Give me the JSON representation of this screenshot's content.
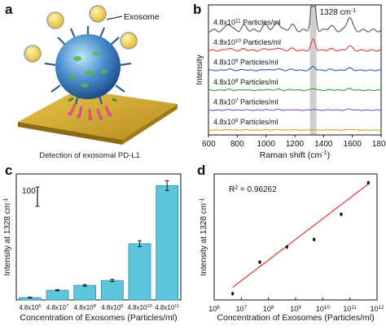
{
  "panels": {
    "a": "a",
    "b": "b",
    "c": "c",
    "d": "d"
  },
  "diagram": {
    "exosome_label": "Exosome",
    "caption": "Detection of exosomal PD-L1"
  },
  "colors": {
    "exosome_body": "#3b7fc4",
    "nanoparticle": "#f2d23c",
    "substrate": "#d6b03a",
    "bar": "#5cc6dc",
    "fit_line": "#e0392b",
    "raman_highlight": "#cfcfcf"
  },
  "chart_data": [
    {
      "panel": "b",
      "type": "line",
      "xlabel": "Raman shift (cm⁻¹)",
      "xlabel_parts": {
        "text": "Raman shift (cm",
        "sup": "-1",
        "tail": ")"
      },
      "ylabel": "Intensity",
      "xlim": [
        600,
        1800
      ],
      "xticks": [
        "600",
        "800",
        "1000",
        "1200",
        "1400",
        "1600",
        "1800"
      ],
      "peak_annotation": {
        "text": "1328 cm",
        "sup": "-1",
        "x": 1328
      },
      "series": [
        {
          "label": "4.8x10",
          "exp": "11",
          "unit": " Particles/ml",
          "color": "#555555",
          "peak": 1.0,
          "offset": 5
        },
        {
          "label": "4.8x10",
          "exp": "10",
          "unit": " Particles/ml",
          "color": "#e23b3b",
          "peak": 0.45,
          "offset": 4
        },
        {
          "label": "4.8x10",
          "exp": "9",
          "unit": " Particles/ml",
          "color": "#2b55c8",
          "peak": 0.25,
          "offset": 3
        },
        {
          "label": "4.8x10",
          "exp": "8",
          "unit": " Particles/ml",
          "color": "#2e9e3e",
          "peak": 0.17,
          "offset": 2
        },
        {
          "label": "4.8x10",
          "exp": "7",
          "unit": " Particles/ml",
          "color": "#8a4fb8",
          "peak": 0.1,
          "offset": 1
        },
        {
          "label": "4.8x10",
          "exp": "6",
          "unit": " Particles/ml",
          "color": "#d2a22a",
          "peak": 0.04,
          "offset": 0
        }
      ]
    },
    {
      "panel": "c",
      "type": "bar",
      "ylabel": "Intensity at 1328 cm",
      "ylabel_sup": "-1",
      "xlabel": "Concentration of Exosomes (Particles/ml)",
      "scale_bar_label": "100",
      "categories": [
        {
          "base": "4.8x10",
          "exp": "6"
        },
        {
          "base": "4.8x10",
          "exp": "7"
        },
        {
          "base": "4.8x10",
          "exp": "8"
        },
        {
          "base": "4.8x10",
          "exp": "9"
        },
        {
          "base": "4.8x10",
          "exp": "10"
        },
        {
          "base": "4.8x10",
          "exp": "11"
        }
      ],
      "values": [
        12,
        50,
        75,
        100,
        290,
        590
      ],
      "errors": [
        2,
        3,
        4,
        6,
        15,
        25
      ],
      "ylim": [
        0,
        650
      ]
    },
    {
      "panel": "d",
      "type": "scatter",
      "ylabel": "Intensity at 1328 cm",
      "ylabel_sup": "-1",
      "xlabel": "Concentration of Exosomes (Particles/ml)",
      "annotation": {
        "text": "R",
        "sup": "2",
        "tail": " = 0.96262"
      },
      "x_log": true,
      "xlim_exp": [
        6,
        12
      ],
      "xticks": [
        {
          "base": "10",
          "exp": "6"
        },
        {
          "base": "10",
          "exp": "7"
        },
        {
          "base": "10",
          "exp": "8"
        },
        {
          "base": "10",
          "exp": "9"
        },
        {
          "base": "10",
          "exp": "10"
        },
        {
          "base": "10",
          "exp": "11"
        },
        {
          "base": "10",
          "exp": "12"
        }
      ],
      "points_x_exp": [
        6.68,
        7.68,
        8.68,
        9.68,
        10.68,
        11.68
      ],
      "points_y": [
        0.05,
        0.3,
        0.42,
        0.48,
        0.68,
        0.93
      ],
      "fit": {
        "x_exp": [
          6.68,
          11.68
        ],
        "y": [
          0.1,
          0.92
        ]
      },
      "ylim": [
        0,
        1
      ]
    }
  ]
}
